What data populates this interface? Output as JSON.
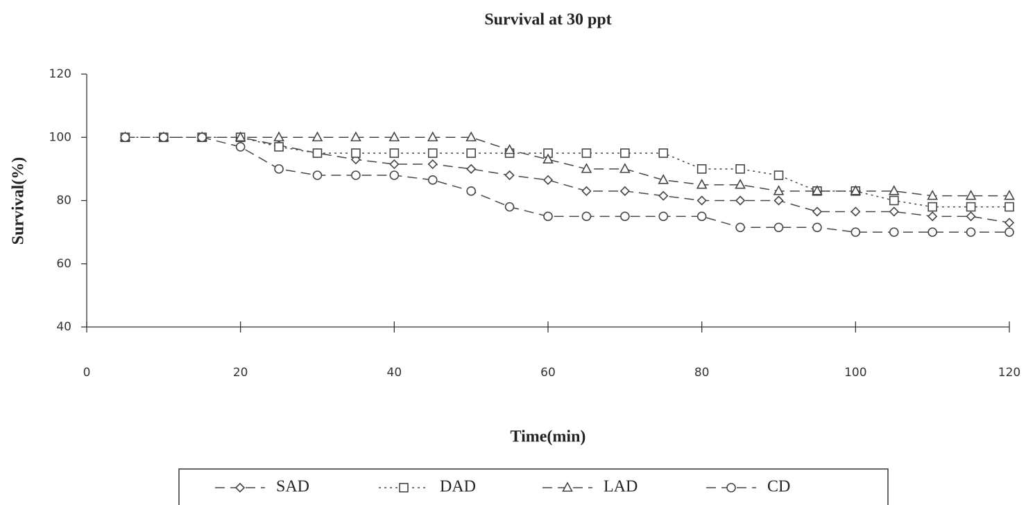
{
  "chart_data": {
    "type": "line",
    "title": "Survival at 30 ppt",
    "x_label": "Time(min)",
    "y_label": "Survival(%)",
    "x": [
      5,
      10,
      15,
      20,
      25,
      30,
      35,
      40,
      45,
      50,
      55,
      60,
      65,
      70,
      75,
      80,
      85,
      90,
      95,
      100,
      105,
      110,
      115,
      120
    ],
    "series": [
      {
        "name": "SAD",
        "color": "#444444",
        "marker": "diamond",
        "dash": "14 8",
        "values": [
          100,
          100,
          100,
          100,
          97.5,
          95,
          93,
          91.5,
          91.5,
          90,
          88,
          86.5,
          83,
          83,
          81.5,
          80,
          80,
          80,
          76.5,
          76.5,
          76.5,
          75,
          75,
          73
        ]
      },
      {
        "name": "DAD",
        "color": "#444444",
        "marker": "square",
        "dash": "3 5",
        "values": [
          100,
          100,
          100,
          100,
          97,
          95,
          95,
          95,
          95,
          95,
          95,
          95,
          95,
          95,
          95,
          90,
          90,
          88,
          83,
          83,
          80,
          78,
          78,
          78
        ]
      },
      {
        "name": "LAD",
        "color": "#444444",
        "marker": "triangle",
        "dash": "14 8",
        "values": [
          100,
          100,
          100,
          100,
          100,
          100,
          100,
          100,
          100,
          100,
          96,
          93,
          90,
          90,
          86.5,
          85,
          85,
          83,
          83,
          83,
          83,
          81.5,
          81.5,
          81.5
        ]
      },
      {
        "name": "CD",
        "color": "#444444",
        "marker": "circle",
        "dash": "14 8",
        "values": [
          100,
          100,
          100,
          97,
          90,
          88,
          88,
          88,
          86.5,
          83,
          78,
          75,
          75,
          75,
          75,
          75,
          71.5,
          71.5,
          71.5,
          70,
          70,
          70,
          70,
          70
        ]
      }
    ],
    "xlim": [
      0,
      120
    ],
    "xticks": [
      0,
      20,
      40,
      60,
      80,
      100,
      120
    ],
    "ylim": [
      40,
      120
    ],
    "yticks": [
      40,
      60,
      80,
      100,
      120
    ]
  }
}
